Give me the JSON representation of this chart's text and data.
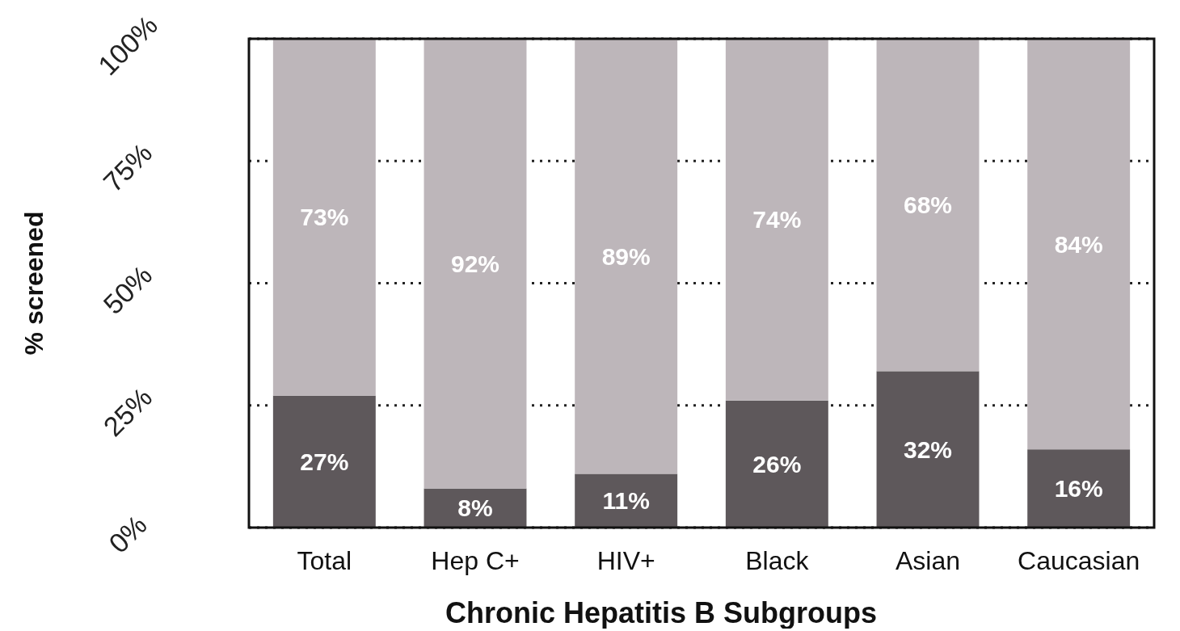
{
  "chart_data": {
    "type": "bar",
    "stacked": true,
    "xlabel": "Chronic Hepatitis B Subgroups",
    "ylabel": "% screened",
    "categories": [
      "Total",
      "Hep C+",
      "HIV+",
      "Black",
      "Asian",
      "Caucasian"
    ],
    "series": [
      {
        "color": "#5e585b",
        "values": [
          27,
          8,
          11,
          26,
          32,
          16
        ],
        "value_labels": [
          "27%",
          "8%",
          "11%",
          "26%",
          "32%",
          "16%"
        ]
      },
      {
        "color": "#bdb6ba",
        "values": [
          73,
          92,
          89,
          74,
          68,
          84
        ],
        "value_labels": [
          "73%",
          "92%",
          "89%",
          "74%",
          "68%",
          "84%"
        ]
      }
    ],
    "ylim": [
      0,
      100
    ],
    "yticks": [
      {
        "value": 0,
        "label": "0%"
      },
      {
        "value": 25,
        "label": "25%"
      },
      {
        "value": 50,
        "label": "50%"
      },
      {
        "value": 75,
        "label": "75%"
      },
      {
        "value": 100,
        "label": "100%"
      }
    ],
    "grid": "y",
    "data_labels": true
  }
}
